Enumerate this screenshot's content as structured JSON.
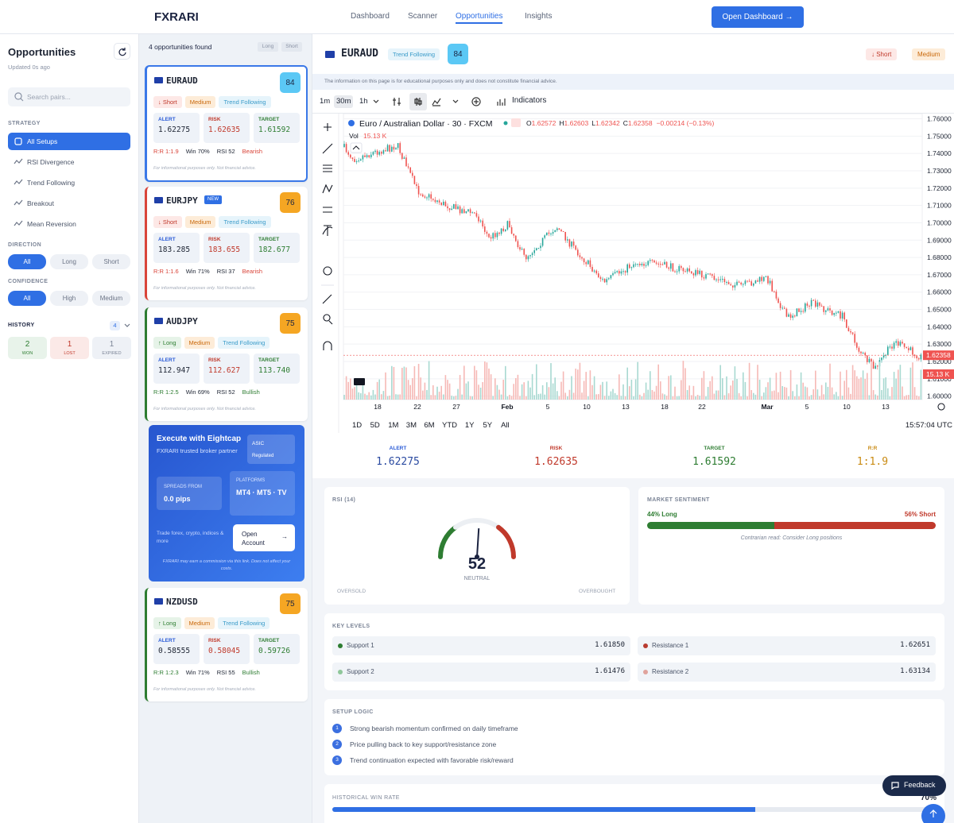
{
  "nav": {
    "brand": "FXRARI",
    "links": [
      "Dashboard",
      "Scanner",
      "Opportunities",
      "Insights"
    ],
    "active": 2,
    "cta": "Open Dashboard →"
  },
  "sidebar": {
    "title": "Opportunities",
    "updated": "Updated 0s ago",
    "search_placeholder": "Search pairs...",
    "strategy_label": "STRATEGY",
    "strategies": [
      "All Setups",
      "RSI Divergence",
      "Trend Following",
      "Breakout",
      "Mean Reversion"
    ],
    "strategy_selected": 0,
    "direction_label": "DIRECTION",
    "directions": [
      "All",
      "Long",
      "Short"
    ],
    "direction_selected": 0,
    "confidence_label": "CONFIDENCE",
    "confidences": [
      "All",
      "High",
      "Medium"
    ],
    "confidence_selected": 0,
    "history_label": "HISTORY",
    "history_count": "4",
    "history": [
      {
        "value": "2",
        "label": "WON",
        "color": "#2e7d32",
        "bg": "#e8f3ea"
      },
      {
        "value": "1",
        "label": "LOST",
        "color": "#c0392b",
        "bg": "#fbe9e7"
      },
      {
        "value": "1",
        "label": "EXPIRED",
        "color": "#7c8597",
        "bg": "#eef1f6"
      }
    ]
  },
  "list": {
    "count": "4 opportunities found",
    "toggles": [
      "Long",
      "Short"
    ],
    "selected": 0,
    "cards": [
      {
        "pair": "EURAUD",
        "score": "84",
        "score_color": "#5bc8f5",
        "direction": "↓ Short",
        "confidence": "Medium",
        "strategy": "Trend Following",
        "accent": "#d9453a",
        "levels": [
          {
            "k": "ALERT",
            "v": "1.62275"
          },
          {
            "k": "RISK",
            "v": "1.62635"
          },
          {
            "k": "TARGET",
            "v": "1.61592"
          }
        ],
        "rr": "R:R 1:1.9",
        "win": "Win 70%",
        "rsi": "RSI 52",
        "bias": "Bearish",
        "disclaimer": "For informational purposes only. Not financial advice."
      },
      {
        "pair": "EURJPY",
        "badge": "NEW",
        "score": "76",
        "score_color": "#f5a623",
        "direction": "↓ Short",
        "confidence": "Medium",
        "strategy": "Trend Following",
        "accent": "#d9453a",
        "levels": [
          {
            "k": "ALERT",
            "v": "183.285"
          },
          {
            "k": "RISK",
            "v": "183.655"
          },
          {
            "k": "TARGET",
            "v": "182.677"
          }
        ],
        "rr": "R:R 1:1.6",
        "win": "Win 71%",
        "rsi": "RSI 37",
        "bias": "Bearish",
        "disclaimer": "For informational purposes only. Not financial advice."
      },
      {
        "pair": "AUDJPY",
        "score": "75",
        "score_color": "#f5a623",
        "direction": "↑ Long",
        "confidence": "Medium",
        "strategy": "Trend Following",
        "accent": "#2e7d32",
        "levels": [
          {
            "k": "ALERT",
            "v": "112.947"
          },
          {
            "k": "RISK",
            "v": "112.627"
          },
          {
            "k": "TARGET",
            "v": "113.740"
          }
        ],
        "rr": "R:R 1:2.5",
        "win": "Win 69%",
        "rsi": "RSI 52",
        "bias": "Bullish",
        "disclaimer": "For informational purposes only. Not financial advice."
      },
      {
        "pair": "NZDUSD",
        "score": "75",
        "score_color": "#f5a623",
        "direction": "↑ Long",
        "confidence": "Medium",
        "strategy": "Trend Following",
        "accent": "#2e7d32",
        "levels": [
          {
            "k": "ALERT",
            "v": "0.58555"
          },
          {
            "k": "RISK",
            "v": "0.58045"
          },
          {
            "k": "TARGET",
            "v": "0.59726"
          }
        ],
        "rr": "R:R 1:2.3",
        "win": "Win 71%",
        "rsi": "RSI 55",
        "bias": "Bullish",
        "disclaimer": "For informational purposes only. Not financial advice."
      }
    ]
  },
  "promo": {
    "title": "Execute with Eightcap",
    "subtitle": "FXRARI trusted broker partner",
    "badge_top": "ASIC",
    "badge_bottom": "Regulated",
    "spreads_label": "SPREADS FROM",
    "spreads_value": "0.0 pips",
    "platforms_label": "PLATFORMS",
    "platforms_value": "MT4 · MT5 · TV",
    "text": "Trade forex, crypto, indices & more",
    "button": "Open Account",
    "button_arrow": "→",
    "footnote": "FXRARI may earn a commission via this link. Does not affect your costs."
  },
  "detail": {
    "pair": "EURAUD",
    "strategy": "Trend Following",
    "score": "84",
    "direction": "↓ Short",
    "confidence": "Medium",
    "disclaimer": "The information on this page is for educational purposes only and does not constitute financial advice.",
    "intervals": [
      "1m",
      "30m",
      "1h"
    ],
    "interval_selected": 1,
    "indicators": "Indicators"
  },
  "chart": {
    "symbol": "Euro / Australian Dollar · 30 · FXCM",
    "ohlc": [
      {
        "k": "O",
        "v": "1.62572"
      },
      {
        "k": "H",
        "v": "1.62603"
      },
      {
        "k": "L",
        "v": "1.62342"
      },
      {
        "k": "C",
        "v": "1.62358"
      }
    ],
    "change": "−0.00214 (−0.13%)",
    "vol_label": "Vol",
    "vol_value": "15.13 K",
    "ylim": [
      1.598,
      1.763
    ],
    "yticks": [
      {
        "value": 1.76,
        "label": "1.76000"
      },
      {
        "value": 1.75,
        "label": "1.75000"
      },
      {
        "value": 1.74,
        "label": "1.74000"
      },
      {
        "value": 1.73,
        "label": "1.73000"
      },
      {
        "value": 1.72,
        "label": "1.72000"
      },
      {
        "value": 1.71,
        "label": "1.71000"
      },
      {
        "value": 1.7,
        "label": "1.70000"
      },
      {
        "value": 1.69,
        "label": "1.69000"
      },
      {
        "value": 1.68,
        "label": "1.68000"
      },
      {
        "value": 1.67,
        "label": "1.67000"
      },
      {
        "value": 1.66,
        "label": "1.66000"
      },
      {
        "value": 1.65,
        "label": "1.65000"
      },
      {
        "value": 1.64,
        "label": "1.64000"
      },
      {
        "value": 1.63,
        "label": "1.63000"
      },
      {
        "value": 1.62,
        "label": "1.62000"
      },
      {
        "value": 1.61,
        "label": "1.61000"
      },
      {
        "value": 1.6,
        "label": "1.60000"
      }
    ],
    "price_tag": {
      "value": 1.62358,
      "label": "1.62358"
    },
    "volume_tag": "15.13 K",
    "dates": [
      "18",
      "22",
      "27",
      "Feb",
      "5",
      "10",
      "13",
      "18",
      "22",
      "Mar",
      "5",
      "10",
      "13"
    ],
    "ranges": [
      "1D",
      "5D",
      "1M",
      "3M",
      "6M",
      "YTD",
      "1Y",
      "5Y",
      "All"
    ],
    "time": "15:57:04 UTC"
  },
  "stats": [
    {
      "label": "ALERT",
      "value": "1.62275",
      "color": "#2a5bd7"
    },
    {
      "label": "RISK",
      "value": "1.62635",
      "color": "#c0392b"
    },
    {
      "label": "TARGET",
      "value": "1.61592",
      "color": "#2e7d32"
    },
    {
      "label": "R:R",
      "value": "1:1.9",
      "color": "#c98a12"
    }
  ],
  "rsi": {
    "title": "RSI (14)",
    "value": 52,
    "state": "NEUTRAL",
    "low": "OVERSOLD",
    "high": "OVERBOUGHT"
  },
  "sentiment": {
    "title": "MARKET SENTIMENT",
    "long": 44,
    "short": 56,
    "long_label": "44% Long",
    "short_label": "56% Short",
    "note": "Contrarian read: Consider Long positions"
  },
  "key_levels": {
    "title": "KEY LEVELS",
    "levels": [
      {
        "name": "Support 1",
        "value": "1.61850",
        "color": "#2e7d32"
      },
      {
        "name": "Resistance 1",
        "value": "1.62651",
        "color": "#b83b30"
      },
      {
        "name": "Support 2",
        "value": "1.61476",
        "color": "#8fc79a"
      },
      {
        "name": "Resistance 2",
        "value": "1.63134",
        "color": "#e0a39c"
      }
    ]
  },
  "setup": {
    "title": "SETUP LOGIC",
    "steps": [
      {
        "n": "1",
        "text": "Strong bearish momentum confirmed on daily timeframe"
      },
      {
        "n": "2",
        "text": "Price pulling back to key support/resistance zone"
      },
      {
        "n": "3",
        "text": "Trend continuation expected with favorable risk/reward"
      }
    ]
  },
  "win_rate": {
    "title": "HISTORICAL WIN RATE",
    "value": 70,
    "label": "70%"
  },
  "feedback": "Feedback"
}
